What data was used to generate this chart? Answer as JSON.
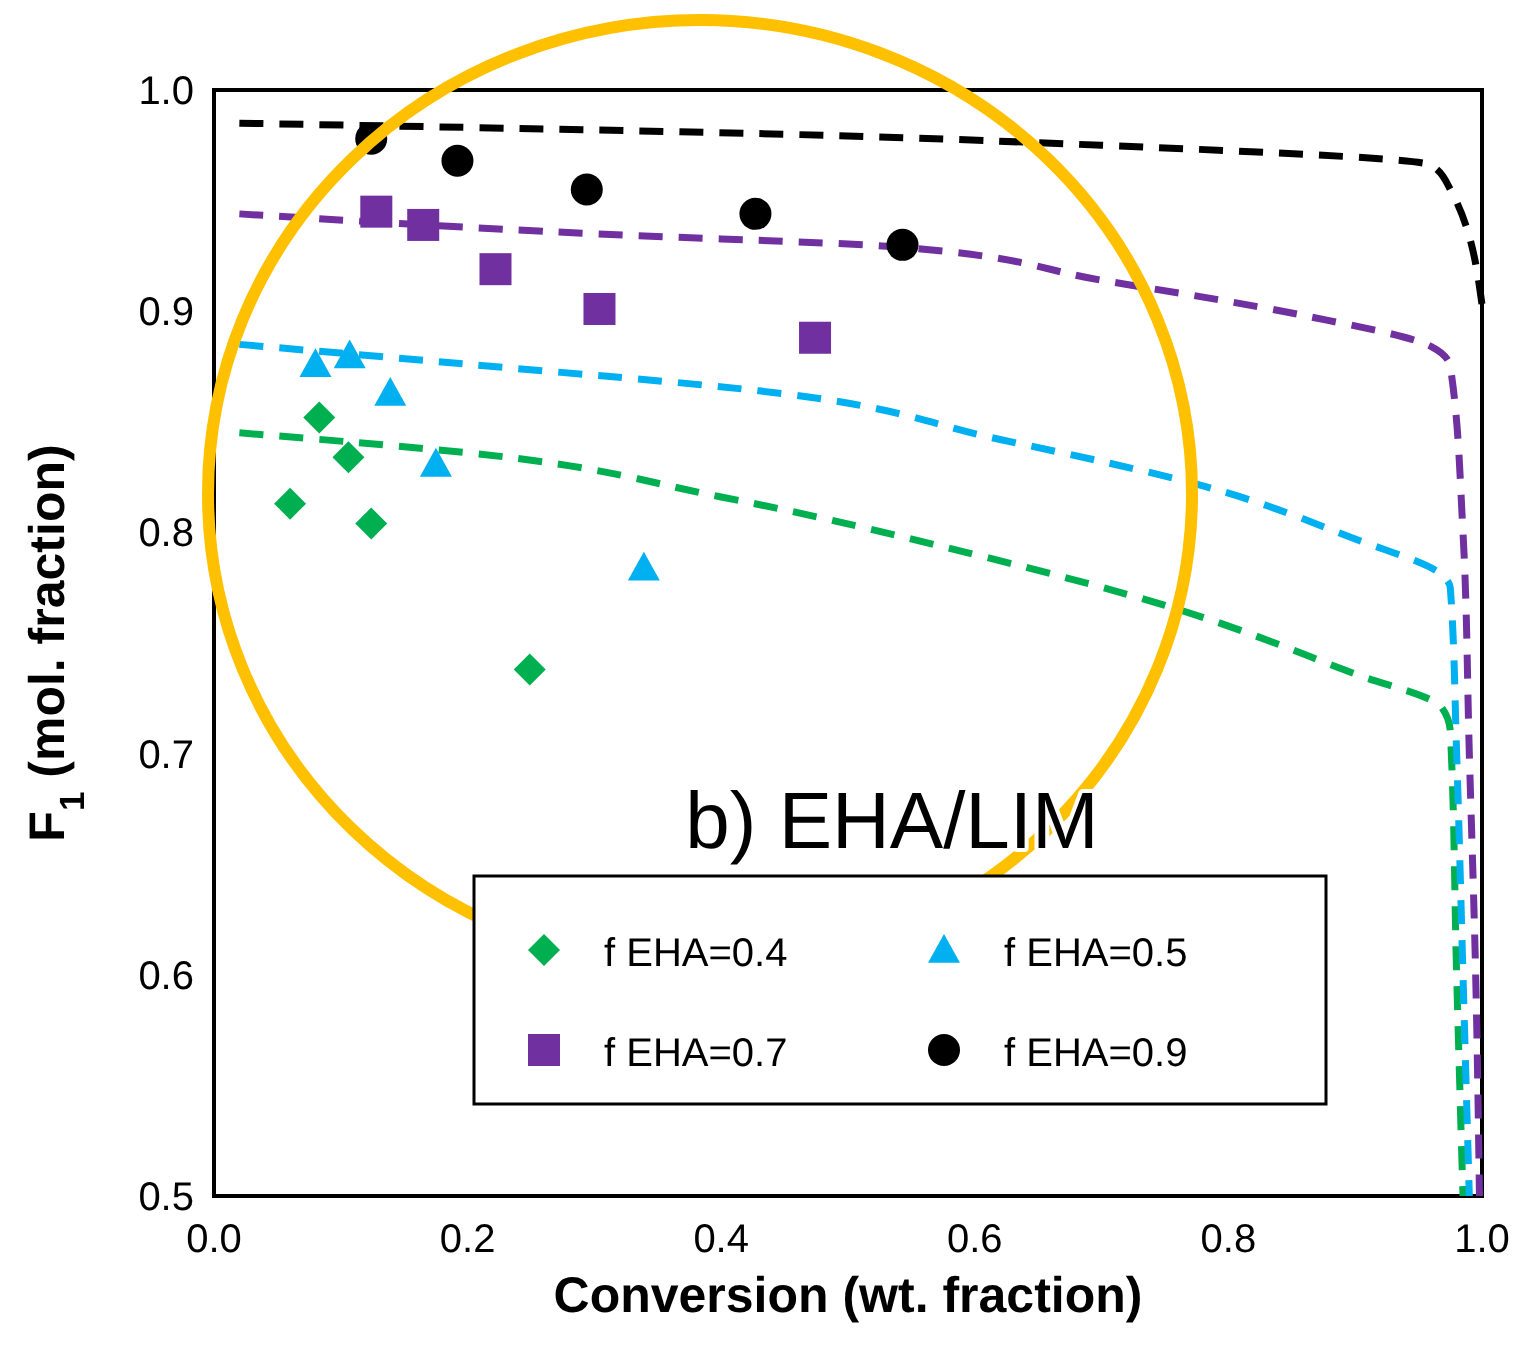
{
  "chart_data": {
    "type": "scatter",
    "xlabel": "Conversion (wt. fraction)",
    "ylabel": "F$_{1}$ (mol. fraction)",
    "annotations": [
      "b) EHA/LIM"
    ],
    "xlim": [
      0,
      1
    ],
    "ylim": [
      0.5,
      1
    ],
    "xticks": [
      {
        "value": 0,
        "label": "0.0"
      },
      0.2,
      0.4,
      0.6,
      0.8,
      {
        "value": 1,
        "label": "1.0"
      }
    ],
    "yticks": [
      0.5,
      0.6,
      0.7,
      0.8,
      0.9,
      {
        "value": 1,
        "label": "1.0"
      }
    ],
    "grid": false,
    "legend": "bottom",
    "series": [
      {
        "name": "f EHA=0.4",
        "type": "scatter",
        "marker": "diamond",
        "color": "#00b050",
        "x": [
          0.083,
          0.106,
          0.06,
          0.124,
          0.249
        ],
        "values": [
          0.852,
          0.834,
          0.813,
          0.804,
          0.738
        ]
      },
      {
        "name": "f EHA=0.5",
        "type": "scatter",
        "marker": "triangle",
        "color": "#00b0f0",
        "x": [
          0.08,
          0.107,
          0.139,
          0.175,
          0.339
        ],
        "values": [
          0.876,
          0.88,
          0.863,
          0.831,
          0.784
        ]
      },
      {
        "name": "f EHA=0.7",
        "type": "scatter",
        "marker": "square",
        "color": "#7030a0",
        "x": [
          0.128,
          0.165,
          0.222,
          0.304,
          0.474
        ],
        "values": [
          0.945,
          0.939,
          0.919,
          0.901,
          0.888
        ]
      },
      {
        "name": "f EHA=0.9",
        "type": "scatter",
        "marker": "circle",
        "color": "#000000",
        "x": [
          0.124,
          0.192,
          0.294,
          0.427,
          0.543
        ],
        "values": [
          0.978,
          0.968,
          0.955,
          0.944,
          0.93
        ]
      },
      {
        "type": "line",
        "line_style": "dashed",
        "marker": "none",
        "color": "#00b050",
        "x": [
          0.02,
          0.2,
          0.4,
          0.6,
          0.75,
          0.9,
          0.968,
          0.975,
          0.98,
          0.985
        ],
        "values": [
          0.845,
          0.836,
          0.816,
          0.79,
          0.767,
          0.736,
          0.721,
          0.71,
          0.6,
          0.5
        ]
      },
      {
        "type": "line",
        "line_style": "dashed",
        "marker": "none",
        "color": "#00b0f0",
        "x": [
          0.02,
          0.2,
          0.43,
          0.62,
          0.78,
          0.9,
          0.968,
          0.975,
          0.98,
          0.985,
          0.99
        ],
        "values": [
          0.885,
          0.876,
          0.864,
          0.842,
          0.821,
          0.797,
          0.781,
          0.775,
          0.7,
          0.6,
          0.5
        ]
      },
      {
        "type": "line",
        "line_style": "dashed",
        "marker": "none",
        "color": "#7030a0",
        "x": [
          0.02,
          0.3,
          0.54,
          0.7,
          0.86,
          0.96,
          0.975,
          0.985,
          0.99,
          0.995,
          0.998
        ],
        "values": [
          0.944,
          0.935,
          0.929,
          0.914,
          0.898,
          0.884,
          0.875,
          0.8,
          0.7,
          0.6,
          0.5
        ]
      },
      {
        "type": "line",
        "line_style": "dashed",
        "marker": "none",
        "color": "#000000",
        "x": [
          0.02,
          0.45,
          0.7,
          0.96,
          0.975,
          1.0
        ],
        "values": [
          0.985,
          0.98,
          0.975,
          0.966,
          0.955,
          0.903
        ]
      }
    ]
  }
}
